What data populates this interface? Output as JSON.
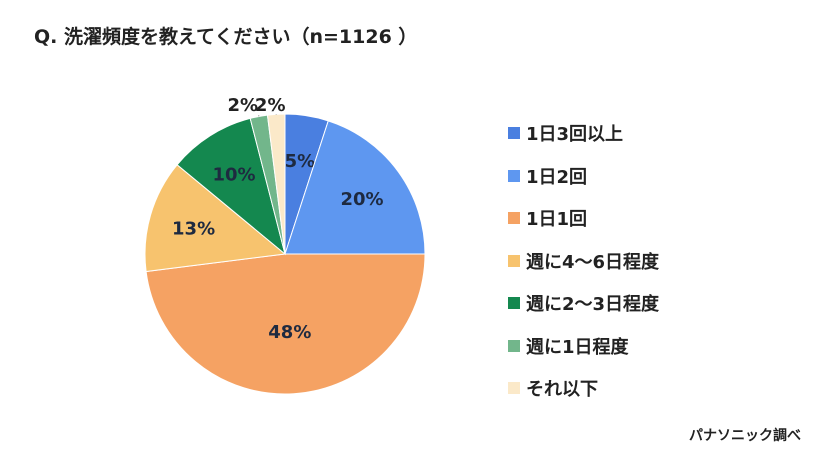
{
  "title": "Q. 洗濯頻度を教えてください（n=1126 ）",
  "source": "パナソニック調べ",
  "chart_data": {
    "type": "pie",
    "title": "Q. 洗濯頻度を教えてください（n=1126 ）",
    "categories": [
      "1日3回以上",
      "1日2回",
      "1日1回",
      "週に4〜6日程度",
      "週に2〜3日程度",
      "週に1日程度",
      "それ以下"
    ],
    "values": [
      5,
      20,
      48,
      13,
      10,
      2,
      2
    ],
    "labels": [
      "5%",
      "20%",
      "48%",
      "13%",
      "10%",
      "2%",
      "2%"
    ],
    "colors": [
      "#4a7fe0",
      "#5e97f0",
      "#f5a263",
      "#f7c36e",
      "#14884f",
      "#72b68b",
      "#fbe9c9"
    ],
    "legend_position": "right"
  }
}
